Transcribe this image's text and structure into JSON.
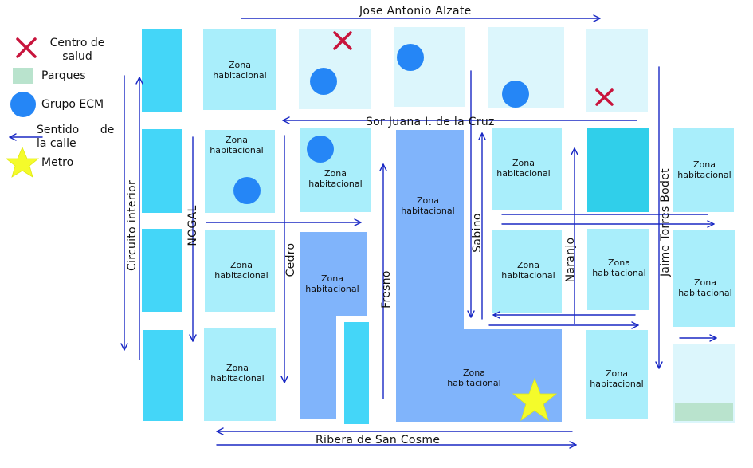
{
  "legend": {
    "health_center": "Centro de\nsalud",
    "parks": "Parques",
    "group": "Grupo ECM",
    "direction": "Sentido      de\nla calle",
    "metro": "Metro"
  },
  "streets": {
    "top": "Jose Antonio Alzate",
    "middle": "Sor Juana I. de la Cruz",
    "bottom": "Ribera de San Cosme",
    "circuito": "Circuito interior",
    "nogal": "NOGAL",
    "cedro": "Cedro",
    "fresno": "Fresno",
    "sabino": "Sabino",
    "naranjo": "Naranjo",
    "jaime": "Jaime Torres Bodet"
  },
  "zone_label": "Zona\nhabitacional",
  "colors": {
    "block": "#a9eefb",
    "block_light": "#dcf6fc",
    "block_dark": "#44d6f8",
    "block_blue": "#80b4fb",
    "park": "#b9e3cd",
    "circle": "#2586f6",
    "cross": "#c8143c",
    "star": "#f4fb2b",
    "arrow": "#1a29c4"
  }
}
